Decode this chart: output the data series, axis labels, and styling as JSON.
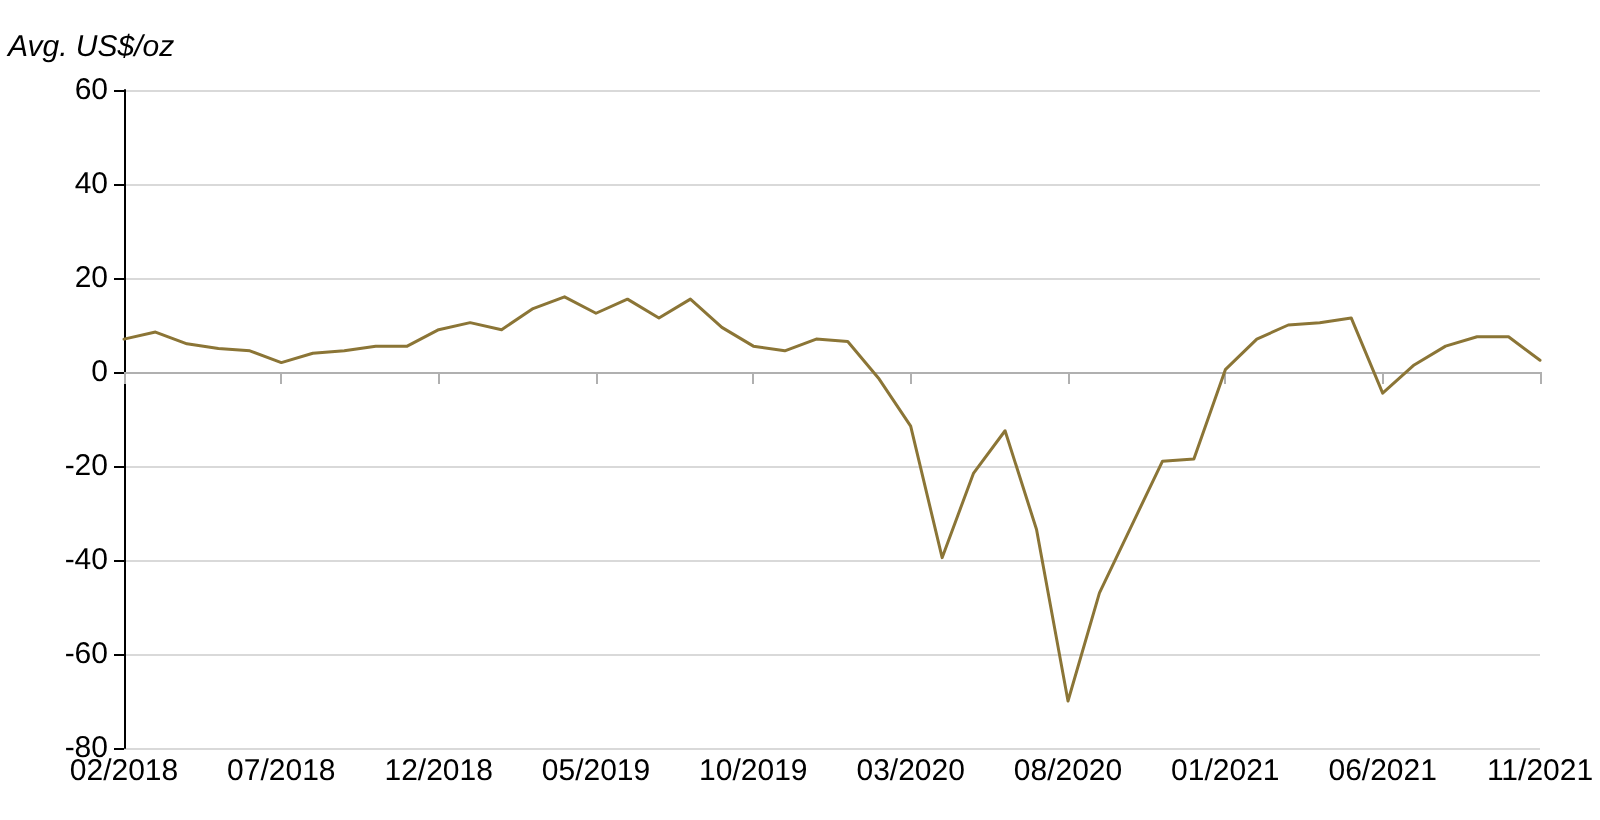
{
  "chart_data": {
    "type": "line",
    "ylabel": "Avg. US$/oz",
    "categories": [
      "02/2018",
      null,
      null,
      null,
      null,
      "07/2018",
      null,
      null,
      null,
      null,
      "12/2018",
      null,
      null,
      null,
      null,
      "05/2019",
      null,
      null,
      null,
      null,
      "10/2019",
      null,
      null,
      null,
      null,
      "03/2020",
      null,
      null,
      null,
      null,
      "08/2020",
      null,
      null,
      null,
      null,
      "01/2021",
      null,
      null,
      null,
      null,
      "06/2021",
      null,
      null,
      null,
      null,
      "11/2021"
    ],
    "series": [
      {
        "color": "#8b7536",
        "values": [
          7,
          8.5,
          6,
          5,
          4.5,
          2,
          4,
          4.5,
          5.5,
          5.5,
          9,
          10.5,
          9,
          13.5,
          16,
          12.5,
          15.5,
          11.5,
          15.5,
          9.5,
          5.5,
          4.5,
          7,
          6.5,
          -1.5,
          -11.5,
          -39.5,
          -21.5,
          -12.5,
          -33.5,
          -70,
          -47,
          -33,
          -19,
          -18.5,
          0.5,
          7,
          10,
          10.5,
          11.5,
          -4.5,
          1.5,
          5.5,
          7.5,
          7.5,
          2.5
        ]
      }
    ],
    "ylim": [
      -80,
      60
    ],
    "yticks": [
      -80,
      -60,
      -40,
      -20,
      0,
      20,
      40,
      60
    ],
    "grid": "y",
    "marker": "none",
    "line_style": "solid"
  }
}
